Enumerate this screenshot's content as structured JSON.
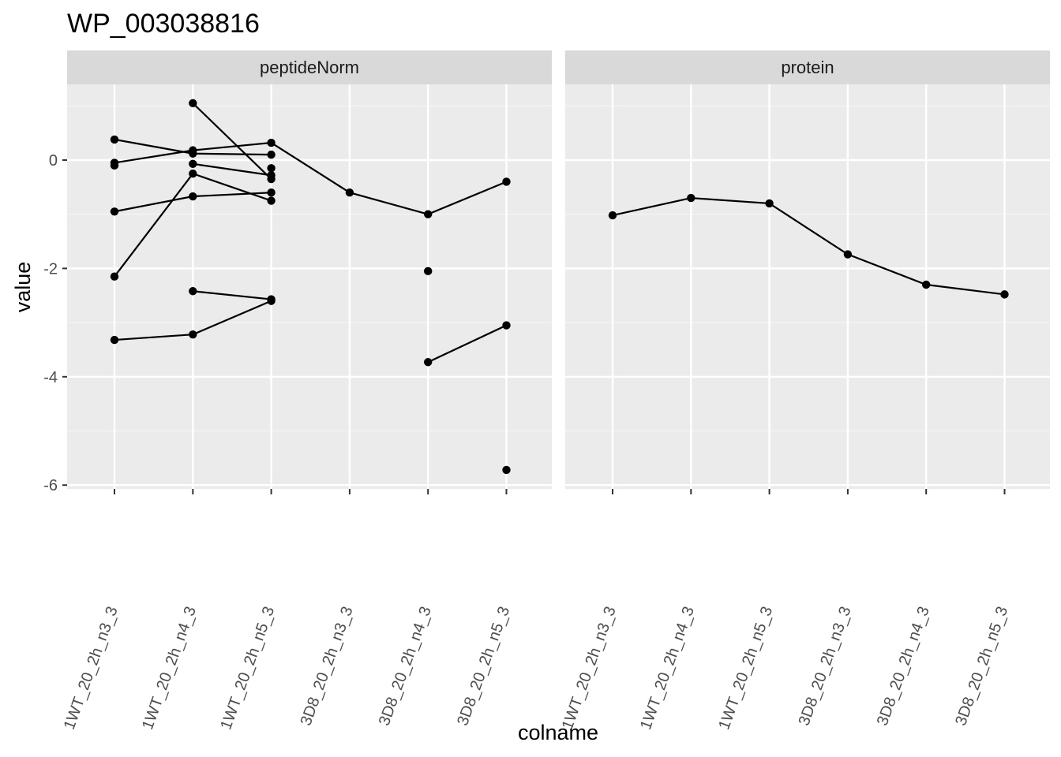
{
  "chart_data": {
    "type": "line",
    "title": "WP_003038816",
    "xlabel": "colname",
    "ylabel": "value",
    "ylim": [
      -6,
      1.4
    ],
    "y_ticks": [
      0,
      -2,
      -4,
      -6
    ],
    "y_tick_labels": [
      "0",
      "-2",
      "-4",
      "-6"
    ],
    "grid": true,
    "categories": [
      "1WT_20_2h_n3_3",
      "1WT_20_2h_n4_3",
      "1WT_20_2h_n5_3",
      "3D8_20_2h_n3_3",
      "3D8_20_2h_n4_3",
      "3D8_20_2h_n5_3"
    ],
    "x_tick_labels": [
      "1WT_20_2h_n3_3",
      "1WT_20_2h_n4_3",
      "1WT_20_2h_n5_3",
      "3D8_20_2h_n3_3",
      "3D8_20_2h_n4_3",
      "3D8_20_2h_n5_3"
    ],
    "panels": [
      {
        "name": "peptideNorm",
        "lines": [
          [
            [
              0,
              0.38
            ],
            [
              1,
              0.12
            ],
            [
              2,
              0.1
            ]
          ],
          [
            [
              0,
              -0.05
            ],
            [
              1,
              0.18
            ],
            [
              2,
              0.32
            ],
            [
              3,
              -0.6
            ],
            [
              4,
              -1.0
            ],
            [
              5,
              -0.4
            ]
          ],
          [
            [
              1,
              1.05
            ],
            [
              2,
              -0.35
            ]
          ],
          [
            [
              1,
              -0.07
            ],
            [
              2,
              -0.28
            ]
          ],
          [
            [
              0,
              -0.95
            ],
            [
              1,
              -0.67
            ],
            [
              2,
              -0.6
            ]
          ],
          [
            [
              0,
              -2.15
            ],
            [
              1,
              -0.25
            ],
            [
              2,
              -0.75
            ]
          ],
          [
            [
              1,
              -2.42
            ],
            [
              2,
              -2.57
            ]
          ],
          [
            [
              0,
              -3.32
            ],
            [
              1,
              -3.22
            ],
            [
              2,
              -2.6
            ]
          ],
          [
            [
              4,
              -3.73
            ],
            [
              5,
              -3.05
            ]
          ]
        ],
        "points": [
          [
            0,
            0.38
          ],
          [
            0,
            -0.05
          ],
          [
            0,
            -0.1
          ],
          [
            0,
            -0.95
          ],
          [
            0,
            -2.15
          ],
          [
            0,
            -3.32
          ],
          [
            1,
            1.05
          ],
          [
            1,
            0.18
          ],
          [
            1,
            0.12
          ],
          [
            1,
            -0.07
          ],
          [
            1,
            -0.25
          ],
          [
            1,
            -0.67
          ],
          [
            1,
            -2.42
          ],
          [
            1,
            -3.22
          ],
          [
            2,
            0.32
          ],
          [
            2,
            0.1
          ],
          [
            2,
            -0.15
          ],
          [
            2,
            -0.28
          ],
          [
            2,
            -0.35
          ],
          [
            2,
            -0.6
          ],
          [
            2,
            -0.75
          ],
          [
            2,
            -2.57
          ],
          [
            2,
            -2.6
          ],
          [
            3,
            -0.6
          ],
          [
            4,
            -1.0
          ],
          [
            4,
            -2.05
          ],
          [
            4,
            -3.73
          ],
          [
            5,
            -0.4
          ],
          [
            5,
            -3.05
          ],
          [
            5,
            -5.72
          ]
        ]
      },
      {
        "name": "protein",
        "lines": [
          [
            [
              0,
              -1.02
            ],
            [
              1,
              -0.7
            ],
            [
              2,
              -0.8
            ],
            [
              3,
              -1.74
            ],
            [
              4,
              -2.3
            ],
            [
              5,
              -2.48
            ]
          ]
        ],
        "points": [
          [
            0,
            -1.02
          ],
          [
            1,
            -0.7
          ],
          [
            2,
            -0.8
          ],
          [
            3,
            -1.74
          ],
          [
            4,
            -2.3
          ],
          [
            5,
            -2.48
          ]
        ]
      }
    ]
  }
}
